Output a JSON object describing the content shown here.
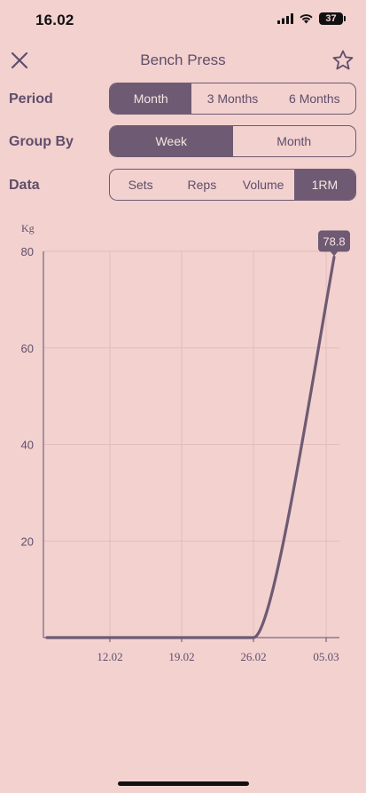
{
  "status": {
    "time": "16.02",
    "battery": "37"
  },
  "nav": {
    "title": "Bench Press"
  },
  "controls": {
    "period": {
      "label": "Period",
      "options": [
        "Month",
        "3 Months",
        "6 Months"
      ],
      "selected": 0
    },
    "group_by": {
      "label": "Group By",
      "options": [
        "Week",
        "Month"
      ],
      "selected": 0
    },
    "data": {
      "label": "Data",
      "options": [
        "Sets",
        "Reps",
        "Volume",
        "1RM"
      ],
      "selected": 3
    }
  },
  "colors": {
    "background": "#f2d1cf",
    "accent": "#6e5a72",
    "text": "#5f4e6a",
    "grid": "#e2bdbd"
  },
  "chart_data": {
    "type": "line",
    "ylabel": "Kg",
    "ylim": [
      0,
      80
    ],
    "yticks": [
      "20",
      "40",
      "60",
      "80"
    ],
    "x_ticks": [
      "12.02",
      "19.02",
      "26.02",
      "05.03"
    ],
    "series": [
      {
        "points": [
          {
            "x": "05.02",
            "y": 0
          },
          {
            "x": "12.02",
            "y": 0
          },
          {
            "x": "19.02",
            "y": 0
          },
          {
            "x": "26.02",
            "y": 0
          },
          {
            "x": "05.03",
            "y": 78.8
          }
        ]
      }
    ],
    "highlight": {
      "x": "05.03",
      "y": 78.8,
      "label": "78.8"
    }
  }
}
